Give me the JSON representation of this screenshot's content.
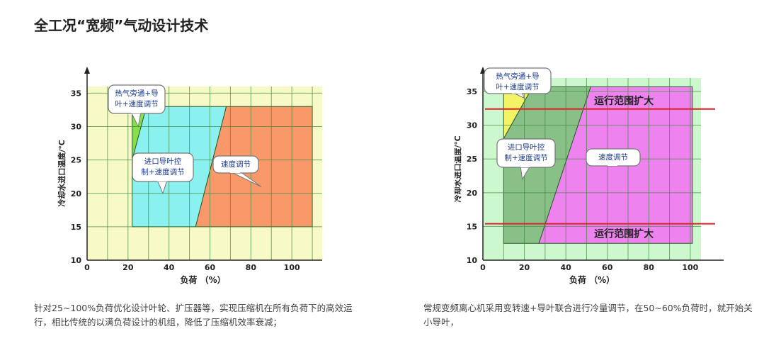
{
  "page": {
    "title": "全工况“宽频”气动设计技术"
  },
  "captions": {
    "left": "针对25~100%负荷优化设计叶轮、扩压器等，实现压缩机在所有负荷下的高效运行，相比传统的以满负荷设计的机组，降低了压缩机效率衰减；",
    "right": "常规变频离心机采用变转速+导叶联合进行冷量调节，在50~60%负荷时，就开始关小导叶，"
  },
  "colors": {
    "grid_bg_left": "#f7f9c6",
    "grid_bg_right": "#cdf7cd",
    "hot_gas_green": "#86e04a",
    "igv_cyan": "#8af0f0",
    "speed_orange": "#f99869",
    "yellow": "#f4f267",
    "dark_green": "#88c088",
    "magenta": "#ee82ee",
    "red_line": "#e0202a",
    "grid_line": "#3f8a3f",
    "callout_border": "#777777"
  },
  "chart_data": [
    {
      "type": "area",
      "xlabel": "负荷 （%）",
      "ylabel": "冷却水进口温度/℃",
      "xlim": [
        0,
        120
      ],
      "ylim": [
        10,
        36
      ],
      "xticks": [
        0,
        20,
        40,
        60,
        80,
        100
      ],
      "yticks": [
        10,
        15,
        20,
        25,
        30,
        35
      ],
      "grid": true,
      "regions": [
        {
          "name": "热气旁通+导叶+速度调节",
          "polygon": [
            [
              22,
              25
            ],
            [
              22,
              33
            ],
            [
              29,
              33
            ]
          ]
        },
        {
          "name": "进口导叶控制+速度调节",
          "polygon": [
            [
              22,
              15
            ],
            [
              22,
              25
            ],
            [
              29,
              33
            ],
            [
              68,
              33
            ],
            [
              53,
              15
            ]
          ]
        },
        {
          "name": "速度调节",
          "polygon": [
            [
              53,
              15
            ],
            [
              68,
              33
            ],
            [
              110,
              33
            ],
            [
              110,
              15
            ]
          ]
        }
      ],
      "callouts": [
        {
          "lines": [
            "热气旁通+导",
            "叶+速度调节"
          ],
          "target": [
            25,
            30
          ]
        },
        {
          "lines": [
            "进口导叶控",
            "制+速度调节"
          ],
          "target": [
            37,
            20
          ]
        },
        {
          "lines": [
            "速度调节"
          ],
          "target": [
            85,
            21
          ]
        }
      ]
    },
    {
      "type": "area",
      "xlabel": "负荷 （%）",
      "ylabel": "冷却水进口温度/℃",
      "xlim": [
        0,
        112
      ],
      "ylim": [
        10,
        37
      ],
      "xticks": [
        0,
        20,
        40,
        60,
        80,
        100
      ],
      "yticks": [
        10,
        15,
        20,
        25,
        30,
        35
      ],
      "grid": true,
      "regions": [
        {
          "name": "热气旁通+导叶+速度调节",
          "polygon": [
            [
              10,
              28
            ],
            [
              10,
              35.7
            ],
            [
              24,
              35.7
            ]
          ]
        },
        {
          "name": "进口导叶控制+速度调节",
          "polygon": [
            [
              10,
              12.5
            ],
            [
              10,
              28
            ],
            [
              24,
              35.7
            ],
            [
              52,
              35.7
            ],
            [
              27,
              12.5
            ]
          ]
        },
        {
          "name": "速度调节",
          "polygon": [
            [
              27,
              12.5
            ],
            [
              52,
              35.7
            ],
            [
              101,
              35.7
            ],
            [
              101,
              12.5
            ]
          ]
        }
      ],
      "reference_lines": [
        {
          "label": "运行范围扩大",
          "y": 32.4,
          "x": [
            1,
            112
          ]
        },
        {
          "label": "运行范围扩大",
          "y": 15.4,
          "x": [
            1,
            112
          ]
        }
      ],
      "callouts": [
        {
          "lines": [
            "热气旁通+导",
            "叶+速度调节"
          ],
          "target": [
            20,
            34
          ]
        },
        {
          "lines": [
            "进口导叶控",
            "制+速度调节"
          ],
          "target": [
            19,
            22
          ]
        },
        {
          "lines": [
            "速度调节"
          ],
          "target": [
            65,
            25
          ]
        }
      ]
    }
  ]
}
